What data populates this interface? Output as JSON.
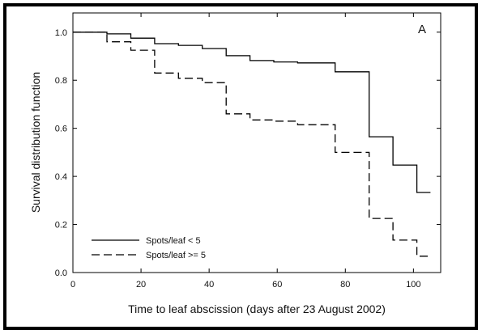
{
  "chart_data": {
    "type": "line",
    "step": true,
    "panel_label": "A",
    "xlabel": "Time to leaf abscission (days after 23 August 2002)",
    "ylabel": "Survival distribution function",
    "xlim": [
      0,
      108
    ],
    "ylim": [
      0,
      1.08
    ],
    "xticks": [
      0,
      20,
      40,
      60,
      80,
      100
    ],
    "yticks": [
      0.0,
      0.2,
      0.4,
      0.6,
      0.8,
      1.0
    ],
    "xtick_labels": [
      "0",
      "20",
      "40",
      "60",
      "80",
      "100"
    ],
    "ytick_labels": [
      "0.0",
      "0.2",
      "0.4",
      "0.6",
      "0.8",
      "1.0"
    ],
    "grid": false,
    "legend_position": "bottom-left",
    "series": [
      {
        "name": "Spots/leaf < 5",
        "style": "solid",
        "x": [
          0,
          10,
          17,
          24,
          31,
          38,
          45,
          52,
          59,
          66,
          77,
          87,
          94,
          101,
          105
        ],
        "y": [
          1.0,
          0.993,
          0.975,
          0.952,
          0.945,
          0.932,
          0.902,
          0.882,
          0.876,
          0.872,
          0.835,
          0.565,
          0.447,
          0.333,
          0.333
        ]
      },
      {
        "name": "Spots/leaf >= 5",
        "style": "dashed",
        "x": [
          0,
          10,
          17,
          24,
          31,
          38,
          45,
          52,
          59,
          66,
          77,
          87,
          94,
          101,
          105
        ],
        "y": [
          1.0,
          0.96,
          0.925,
          0.83,
          0.808,
          0.79,
          0.66,
          0.635,
          0.63,
          0.615,
          0.5,
          0.225,
          0.135,
          0.068,
          0.068
        ]
      }
    ]
  }
}
